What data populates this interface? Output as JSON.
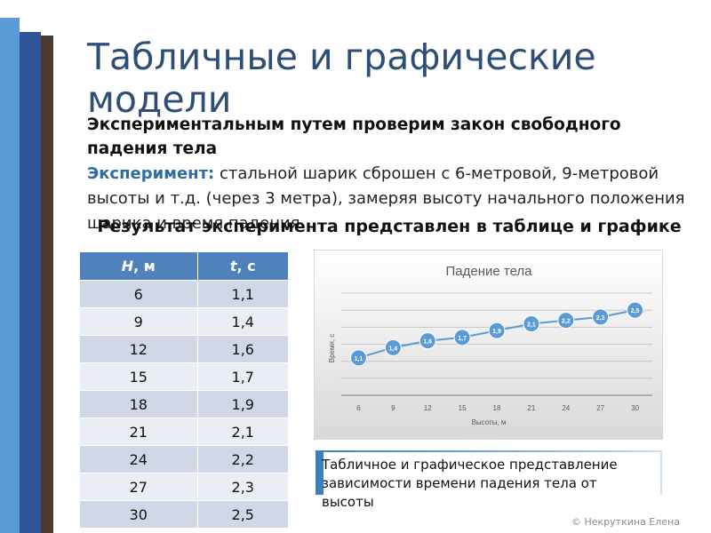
{
  "title": "Табличные и графические модели",
  "subtitle": "Экспериментальным путем проверим закон свободного падения тела",
  "experiment": {
    "label": "Эксперимент:",
    "text": " стальной шарик сброшен с 6-метровой, 9-метровой высоты и т.д. (через 3 метра), замеряя высоту начального положения шарика и время падения"
  },
  "result_text": "Результат эксперимента представлен в таблице и графике",
  "table": {
    "header_h_var": "H",
    "header_h_unit": ", м",
    "header_t_var": "t",
    "header_t_unit": ", с",
    "rows": [
      {
        "h": "6",
        "t": "1,1"
      },
      {
        "h": "9",
        "t": "1,4"
      },
      {
        "h": "12",
        "t": "1,6"
      },
      {
        "h": "15",
        "t": "1,7"
      },
      {
        "h": "18",
        "t": "1,9"
      },
      {
        "h": "21",
        "t": "2,1"
      },
      {
        "h": "24",
        "t": "2,2"
      },
      {
        "h": "27",
        "t": "2,3"
      },
      {
        "h": "30",
        "t": "2,5"
      }
    ]
  },
  "chart_data": {
    "type": "line",
    "title": "Падение тела",
    "xlabel": "Высоты, м",
    "ylabel": "Время, с",
    "categories": [
      "6",
      "9",
      "12",
      "15",
      "18",
      "21",
      "24",
      "27",
      "30"
    ],
    "values": [
      1.1,
      1.4,
      1.6,
      1.7,
      1.9,
      2.1,
      2.2,
      2.3,
      2.5
    ],
    "data_labels": [
      "1,1",
      "1,4",
      "1,6",
      "1,7",
      "1,9",
      "2,1",
      "2,2",
      "2,3",
      "2,5"
    ],
    "ylim": [
      0,
      3
    ],
    "grid": true,
    "legend": "none",
    "line_color": "#5b9bd5",
    "marker_color": "#5b9bd5"
  },
  "caption": "Табличное и графическое представление зависимости времени падения тела от высоты",
  "copyright": "© Некруткина Елена",
  "colors": {
    "title": "#2e4d77",
    "table_header": "#4f81bd",
    "table_row_odd": "#d0d8e8",
    "table_row_even": "#e9edf4",
    "accent": "#5b9bd5"
  }
}
